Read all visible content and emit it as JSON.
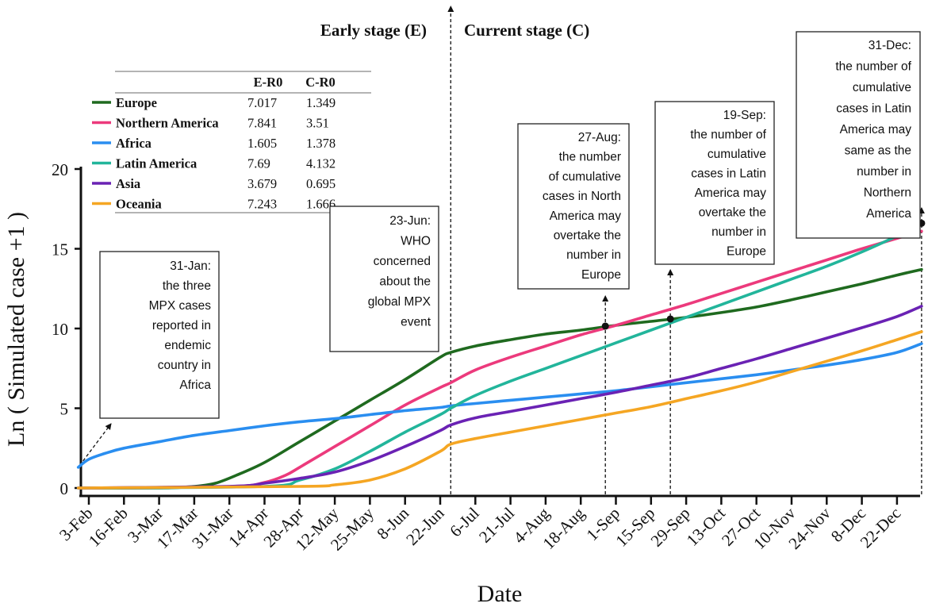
{
  "chart_data": {
    "type": "line",
    "xlabel": "Date",
    "ylabel": "Ln ( Simulated case +1 )",
    "ylim": [
      0,
      20
    ],
    "yticks": [
      "0",
      "5",
      "10",
      "15",
      "20"
    ],
    "xticks": [
      "3-Feb",
      "16-Feb",
      "3-Mar",
      "17-Mar",
      "31-Mar",
      "14-Apr",
      "28-Apr",
      "12-May",
      "25-May",
      "8-Jun",
      "22-Jun",
      "6-Jul",
      "21-Jul",
      "4-Aug",
      "18-Aug",
      "1-Sep",
      "15-Sep",
      "29-Sep",
      "13-Oct",
      "27-Oct",
      "10-Nov",
      "24-Nov",
      "8-Dec",
      "22-Dec"
    ],
    "xrange": [
      -0.3,
      23.7
    ],
    "stages": {
      "early": "Early stage (E)",
      "current": "Current stage (C)",
      "divider_x": 10.3
    },
    "legend": {
      "header_e": "E-R0",
      "header_c": "C-R0",
      "entries": [
        {
          "name": "Europe",
          "color": "#1f6a1f",
          "e_r0": "7.017",
          "c_r0": "1.349"
        },
        {
          "name": "Northern America",
          "color": "#ec3a7c",
          "e_r0": "7.841",
          "c_r0": "3.51"
        },
        {
          "name": "Africa",
          "color": "#2a8ef0",
          "e_r0": "1.605",
          "c_r0": "1.378"
        },
        {
          "name": "Latin America",
          "color": "#22b59b",
          "e_r0": "7.69",
          "c_r0": "4.132"
        },
        {
          "name": "Asia",
          "color": "#6a22b4",
          "e_r0": "3.679",
          "c_r0": "0.695"
        },
        {
          "name": "Oceania",
          "color": "#f5a623",
          "e_r0": "7.243",
          "c_r0": "1.666"
        }
      ]
    },
    "series": [
      {
        "name": "Europe",
        "color": "#1f6a1f",
        "points": [
          [
            -0.3,
            0
          ],
          [
            2,
            0
          ],
          [
            3,
            0.1
          ],
          [
            3.6,
            0.3
          ],
          [
            4.2,
            0.8
          ],
          [
            5,
            1.6
          ],
          [
            6,
            2.9
          ],
          [
            7,
            4.2
          ],
          [
            8,
            5.5
          ],
          [
            9,
            6.8
          ],
          [
            10,
            8.2
          ],
          [
            10.3,
            8.5
          ],
          [
            11,
            8.9
          ],
          [
            12,
            9.3
          ],
          [
            13,
            9.65
          ],
          [
            14,
            9.9
          ],
          [
            15,
            10.2
          ],
          [
            16,
            10.45
          ],
          [
            17,
            10.7
          ],
          [
            18,
            11
          ],
          [
            19,
            11.35
          ],
          [
            20,
            11.8
          ],
          [
            21,
            12.3
          ],
          [
            22,
            12.8
          ],
          [
            23,
            13.35
          ],
          [
            23.7,
            13.7
          ]
        ]
      },
      {
        "name": "Northern America",
        "color": "#ec3a7c",
        "points": [
          [
            -0.3,
            0
          ],
          [
            4,
            0.1
          ],
          [
            5,
            0.35
          ],
          [
            5.6,
            0.8
          ],
          [
            6,
            1.3
          ],
          [
            7,
            2.6
          ],
          [
            8,
            3.9
          ],
          [
            9,
            5.2
          ],
          [
            10,
            6.3
          ],
          [
            10.3,
            6.6
          ],
          [
            11,
            7.4
          ],
          [
            12,
            8.2
          ],
          [
            13,
            8.9
          ],
          [
            14,
            9.6
          ],
          [
            15,
            10.2
          ],
          [
            16,
            10.85
          ],
          [
            17,
            11.5
          ],
          [
            18,
            12.2
          ],
          [
            19,
            12.9
          ],
          [
            20,
            13.6
          ],
          [
            21,
            14.3
          ],
          [
            22,
            15
          ],
          [
            23,
            15.65
          ],
          [
            23.7,
            16.1
          ]
        ]
      },
      {
        "name": "Africa",
        "color": "#2a8ef0",
        "points": [
          [
            -0.3,
            1.3
          ],
          [
            0,
            1.8
          ],
          [
            0.5,
            2.2
          ],
          [
            1,
            2.5
          ],
          [
            2,
            2.9
          ],
          [
            3,
            3.3
          ],
          [
            4,
            3.6
          ],
          [
            5,
            3.9
          ],
          [
            6,
            4.15
          ],
          [
            7,
            4.35
          ],
          [
            8,
            4.6
          ],
          [
            9,
            4.85
          ],
          [
            10,
            5.05
          ],
          [
            10.3,
            5.15
          ],
          [
            11,
            5.3
          ],
          [
            12,
            5.5
          ],
          [
            13,
            5.7
          ],
          [
            14,
            5.9
          ],
          [
            15,
            6.1
          ],
          [
            16,
            6.35
          ],
          [
            17,
            6.6
          ],
          [
            18,
            6.85
          ],
          [
            19,
            7.1
          ],
          [
            20,
            7.4
          ],
          [
            21,
            7.7
          ],
          [
            22,
            8.05
          ],
          [
            23,
            8.5
          ],
          [
            23.7,
            9.05
          ]
        ]
      },
      {
        "name": "Latin America",
        "color": "#22b59b",
        "points": [
          [
            -0.3,
            0
          ],
          [
            5,
            0.1
          ],
          [
            6,
            0.5
          ],
          [
            7,
            1.2
          ],
          [
            8,
            2.3
          ],
          [
            9,
            3.5
          ],
          [
            10,
            4.6
          ],
          [
            10.3,
            5
          ],
          [
            11,
            5.8
          ],
          [
            12,
            6.7
          ],
          [
            13,
            7.5
          ],
          [
            14,
            8.3
          ],
          [
            15,
            9.1
          ],
          [
            16,
            9.9
          ],
          [
            17,
            10.7
          ],
          [
            18,
            11.5
          ],
          [
            19,
            12.3
          ],
          [
            20,
            13.1
          ],
          [
            21,
            13.9
          ],
          [
            22,
            14.8
          ],
          [
            23,
            15.8
          ],
          [
            23.7,
            16.6
          ]
        ]
      },
      {
        "name": "Asia",
        "color": "#6a22b4",
        "points": [
          [
            -0.3,
            0
          ],
          [
            4,
            0.1
          ],
          [
            5,
            0.3
          ],
          [
            6,
            0.6
          ],
          [
            7,
            1
          ],
          [
            8,
            1.7
          ],
          [
            9,
            2.6
          ],
          [
            10,
            3.6
          ],
          [
            10.3,
            3.95
          ],
          [
            11,
            4.4
          ],
          [
            12,
            4.8
          ],
          [
            13,
            5.2
          ],
          [
            14,
            5.6
          ],
          [
            15,
            6
          ],
          [
            16,
            6.45
          ],
          [
            17,
            6.9
          ],
          [
            18,
            7.5
          ],
          [
            19,
            8.1
          ],
          [
            20,
            8.75
          ],
          [
            21,
            9.4
          ],
          [
            22,
            10.05
          ],
          [
            23,
            10.75
          ],
          [
            23.7,
            11.4
          ]
        ]
      },
      {
        "name": "Oceania",
        "color": "#f5a623",
        "points": [
          [
            -0.3,
            0
          ],
          [
            6,
            0.1
          ],
          [
            7,
            0.2
          ],
          [
            8,
            0.5
          ],
          [
            9,
            1.2
          ],
          [
            10,
            2.3
          ],
          [
            10.3,
            2.75
          ],
          [
            11,
            3.1
          ],
          [
            12,
            3.5
          ],
          [
            13,
            3.9
          ],
          [
            14,
            4.3
          ],
          [
            15,
            4.7
          ],
          [
            16,
            5.1
          ],
          [
            17,
            5.6
          ],
          [
            18,
            6.1
          ],
          [
            19,
            6.65
          ],
          [
            20,
            7.3
          ],
          [
            21,
            7.95
          ],
          [
            22,
            8.6
          ],
          [
            23,
            9.3
          ],
          [
            23.7,
            9.8
          ]
        ]
      }
    ],
    "markers": [
      [
        14.7,
        10.15
      ],
      [
        16.55,
        10.6
      ],
      [
        23.7,
        16.6
      ]
    ],
    "annotations": [
      {
        "id": "jan31",
        "text": [
          "31-Jan:",
          "the three",
          "MPX cases",
          "reported in",
          "endemic",
          "country in",
          "Africa"
        ],
        "arrow_x": -0.3,
        "arrow_y": 1.3
      },
      {
        "id": "jun23",
        "text": [
          "23-Jun:",
          "WHO",
          "concerned",
          "about the",
          "global MPX",
          "event"
        ]
      },
      {
        "id": "aug27",
        "text": [
          "27-Aug:",
          "the number",
          "of cumulative",
          "cases in North",
          "America may",
          "overtake the",
          "number in",
          "Europe"
        ],
        "arrow_x": 14.7,
        "arrow_y": 10.15
      },
      {
        "id": "sep19",
        "text": [
          "19-Sep:",
          "the number of",
          "cumulative",
          "cases in Latin",
          "America may",
          "overtake the",
          "number in",
          "Europe"
        ],
        "arrow_x": 16.55,
        "arrow_y": 10.6
      },
      {
        "id": "dec31",
        "text": [
          "31-Dec:",
          "the number of",
          "cumulative",
          "cases in Latin",
          "America may",
          "same as the",
          "number in",
          "Northern",
          "America"
        ],
        "arrow_x": 23.7,
        "arrow_y": 16.6
      }
    ]
  }
}
